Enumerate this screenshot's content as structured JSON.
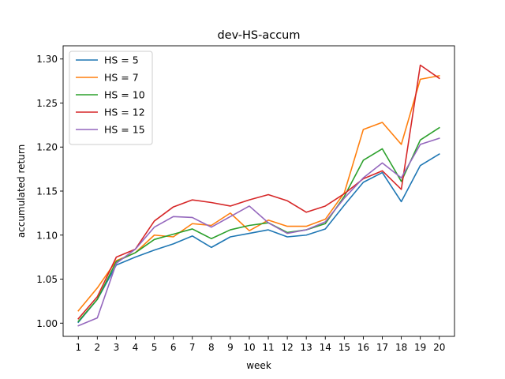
{
  "chart_data": {
    "type": "line",
    "title": "dev-HS-accum",
    "xlabel": "week",
    "ylabel": "accumulated return",
    "x": [
      1,
      2,
      3,
      4,
      5,
      6,
      7,
      8,
      9,
      10,
      11,
      12,
      13,
      14,
      15,
      16,
      17,
      18,
      19,
      20
    ],
    "xlim": [
      0.2,
      20.8
    ],
    "ylim": [
      0.985,
      1.315
    ],
    "yticks": [
      1.0,
      1.05,
      1.1,
      1.15,
      1.2,
      1.25,
      1.3
    ],
    "ytick_labels": [
      "1.00",
      "1.05",
      "1.10",
      "1.15",
      "1.20",
      "1.25",
      "1.30"
    ],
    "xtick_labels": [
      "1",
      "2",
      "3",
      "4",
      "5",
      "6",
      "7",
      "8",
      "9",
      "10",
      "11",
      "12",
      "13",
      "14",
      "15",
      "16",
      "17",
      "18",
      "19",
      "20"
    ],
    "legend_position": "top-left",
    "series": [
      {
        "name": "HS = 5",
        "color": "#1f77b4",
        "values": [
          1.001,
          1.027,
          1.066,
          1.075,
          1.083,
          1.09,
          1.099,
          1.086,
          1.098,
          1.102,
          1.106,
          1.098,
          1.1,
          1.107,
          1.134,
          1.16,
          1.171,
          1.138,
          1.179,
          1.192
        ]
      },
      {
        "name": "HS = 7",
        "color": "#ff7f0e",
        "values": [
          1.014,
          1.04,
          1.071,
          1.08,
          1.1,
          1.098,
          1.113,
          1.111,
          1.125,
          1.105,
          1.117,
          1.11,
          1.11,
          1.118,
          1.148,
          1.22,
          1.228,
          1.203,
          1.277,
          1.281
        ]
      },
      {
        "name": "HS = 10",
        "color": "#2ca02c",
        "values": [
          1.002,
          1.027,
          1.07,
          1.08,
          1.095,
          1.101,
          1.107,
          1.096,
          1.106,
          1.111,
          1.114,
          1.103,
          1.106,
          1.113,
          1.144,
          1.185,
          1.198,
          1.161,
          1.208,
          1.222
        ]
      },
      {
        "name": "HS = 12",
        "color": "#d62728",
        "values": [
          1.005,
          1.03,
          1.075,
          1.084,
          1.116,
          1.132,
          1.14,
          1.137,
          1.133,
          1.14,
          1.146,
          1.139,
          1.126,
          1.133,
          1.147,
          1.164,
          1.173,
          1.152,
          1.293,
          1.278
        ]
      },
      {
        "name": "HS = 15",
        "color": "#9467bd",
        "values": [
          0.997,
          1.006,
          1.068,
          1.084,
          1.109,
          1.121,
          1.12,
          1.109,
          1.121,
          1.133,
          1.114,
          1.102,
          1.106,
          1.115,
          1.142,
          1.165,
          1.182,
          1.165,
          1.203,
          1.21
        ]
      }
    ]
  }
}
